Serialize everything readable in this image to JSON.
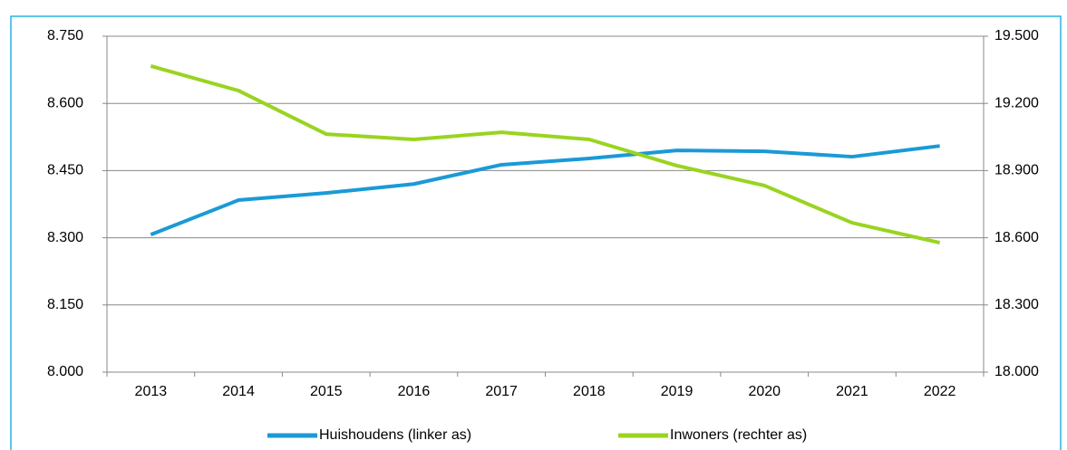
{
  "chart_data": {
    "type": "line",
    "categories": [
      "2013",
      "2014",
      "2015",
      "2016",
      "2017",
      "2018",
      "2019",
      "2020",
      "2021",
      "2022"
    ],
    "series": [
      {
        "name": "Huishoudens (linker as)",
        "color": "#1a9ad6",
        "values": [
          8307,
          8384,
          8400,
          8420,
          8463,
          8477,
          8495,
          8493,
          8481,
          8505
        ]
      },
      {
        "name": "Inwoners (rechter as)",
        "color": "#99d420",
        "axis": "y2",
        "values": [
          19367,
          19257,
          19063,
          19039,
          19071,
          19039,
          18922,
          18833,
          18667,
          18578
        ]
      }
    ],
    "ylim": [
      8000,
      8750
    ],
    "yticks": [
      {
        "value": 8000,
        "label": "8.000"
      },
      {
        "value": 8150,
        "label": "8.150"
      },
      {
        "value": 8300,
        "label": "8.300"
      },
      {
        "value": 8450,
        "label": "8.450"
      },
      {
        "value": 8600,
        "label": "8.600"
      },
      {
        "value": 8750,
        "label": "8.750"
      }
    ],
    "y2lim": [
      18000,
      19500
    ],
    "y2ticks": [
      {
        "value": 18000,
        "label": "18.000"
      },
      {
        "value": 18300,
        "label": "18.300"
      },
      {
        "value": 18600,
        "label": "18.600"
      },
      {
        "value": 18900,
        "label": "18.900"
      },
      {
        "value": 19200,
        "label": "19.200"
      },
      {
        "value": 19500,
        "label": "19.500"
      }
    ],
    "grid": true,
    "legend": "bottom"
  }
}
